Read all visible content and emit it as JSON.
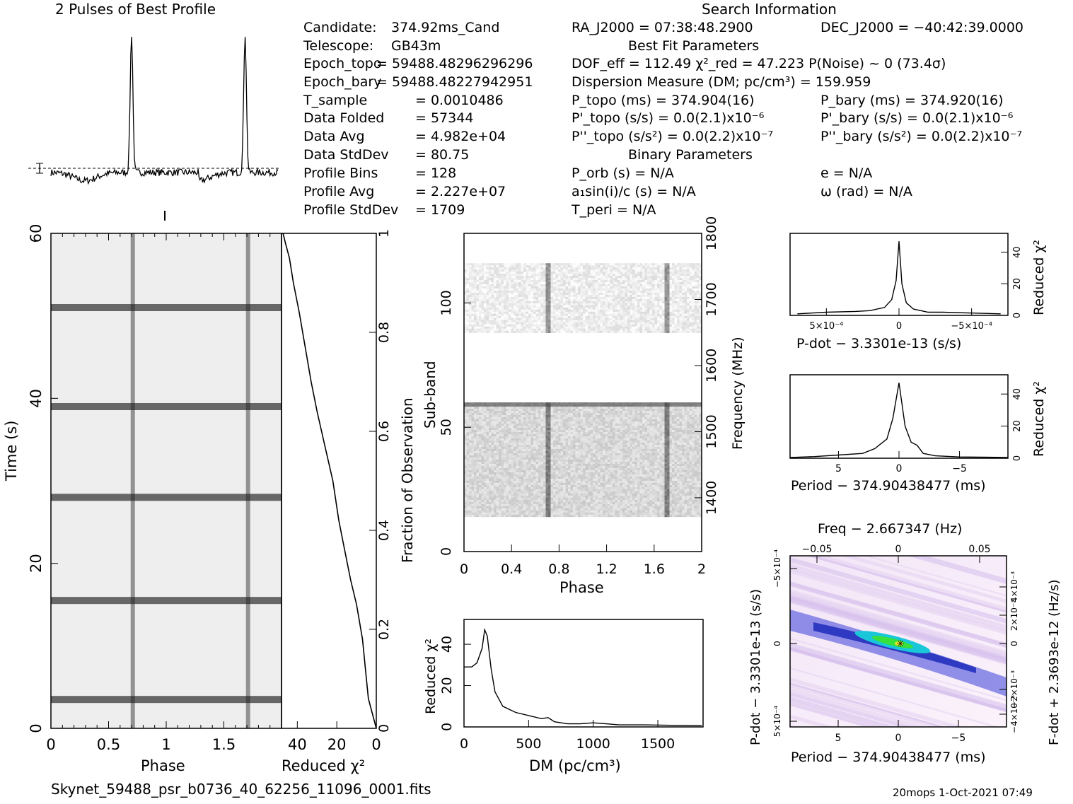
{
  "header": {
    "profile_title": "2 Pulses of Best Profile",
    "search_title": "Search Information",
    "best_fit_title": "Best Fit Parameters",
    "binary_title": "Binary Parameters"
  },
  "info_left": [
    {
      "k": "Candidate:",
      "v": "374.92ms_Cand"
    },
    {
      "k": "Telescope:",
      "v": "GB43m"
    },
    {
      "k": "Epoch_topo",
      "v": "= 59488.48296296296"
    },
    {
      "k": "Epoch_bary",
      "v": "= 59488.48227942951"
    },
    {
      "k": "T_sample",
      "v": "0.0010486"
    },
    {
      "k": "Data Folded",
      "v": "57344"
    },
    {
      "k": "Data Avg",
      "v": "4.982e+04"
    },
    {
      "k": "Data StdDev",
      "v": "80.75"
    },
    {
      "k": "Profile Bins",
      "v": "128"
    },
    {
      "k": "Profile Avg",
      "v": "2.227e+07"
    },
    {
      "k": "Profile StdDev",
      "v": "1709"
    }
  ],
  "info_mid": {
    "ra": "RA_J2000 = 07:38:48.2900",
    "dof": "DOF_eff = 112.49   χ²_red = 47.223   P(Noise) ~ 0    (73.4σ)",
    "dm": "Dispersion Measure (DM; pc/cm³) = 159.959",
    "ptopo": "P_topo (ms) =  374.904(16)",
    "pdtopo": "P'_topo (s/s) = 0.0(2.1)x10⁻⁶",
    "pddtopo": "P''_topo (s/s²) = 0.0(2.2)x10⁻⁷",
    "porb": "P_orb (s) = N/A",
    "a1": "a₁sin(i)/c (s) = N/A",
    "tperi": "T_peri = N/A"
  },
  "info_right": {
    "dec": "DEC_J2000 = −40:42:39.0000",
    "pbary": "P_bary (ms) =  374.920(16)",
    "pdbary": "P'_bary (s/s) = 0.0(2.1)x10⁻⁶",
    "pddbary": "P''_bary (s/s²) = 0.0(2.2)x10⁻⁷",
    "e": "e = N/A",
    "omega": "ω (rad) = N/A"
  },
  "axes": {
    "time_label": "Time (s)",
    "phase_label": "Phase",
    "redchi_label": "Reduced χ²",
    "fraction_label": "Fraction of Observation",
    "subband_label": "Sub-band",
    "freq_label": "Frequency (MHz)",
    "dm_label": "DM (pc/cm³)",
    "pdot_label": "P-dot − 3.3301e-13 (s/s)",
    "period_label": "Period − 374.90438477 (ms)",
    "freq_top_label": "Freq − 2.667347 (Hz)",
    "fdot_label": "F-dot + 2.3693e-12 (Hz/s)",
    "pdot_side_label": "P-dot − 3.3301e-13 (s/s)"
  },
  "footer": {
    "filename": "Skynet_59488_psr_b0736_40_62256_11096_0001.fits",
    "stamp": "20mops   1-Oct-2021 07:49"
  },
  "chart_data": [
    {
      "type": "line",
      "title": "2 Pulses of Best Profile",
      "x_range": [
        0,
        2
      ],
      "peaks_phase": [
        0.71,
        1.71
      ]
    },
    {
      "type": "heatmap",
      "name": "time-phase",
      "xlabel": "Phase",
      "ylabel": "Time (s)",
      "xlim": [
        0,
        2
      ],
      "ylim": [
        0,
        60
      ],
      "x_ticks": [
        "0",
        "0.5",
        "1",
        "1.5"
      ],
      "y_ticks": [
        "0",
        "20",
        "40",
        "60"
      ],
      "pulse_phase": [
        0.71,
        1.71
      ],
      "dark_rows_time": [
        3.5,
        15.5,
        28,
        39,
        51
      ]
    },
    {
      "type": "line",
      "name": "cumulative reduced chi2",
      "xlabel": "Reduced χ²",
      "ylabel": "Fraction of Observation",
      "x_ticks": [
        "40",
        "20",
        "0"
      ],
      "y_ticks": [
        "0",
        "0.2",
        "0.4",
        "0.6",
        "0.8",
        "1"
      ],
      "points": [
        [
          0,
          0
        ],
        [
          2,
          0.03
        ],
        [
          4,
          0.06
        ],
        [
          5,
          0.1
        ],
        [
          7,
          0.18
        ],
        [
          10,
          0.25
        ],
        [
          13,
          0.3
        ],
        [
          16,
          0.36
        ],
        [
          19,
          0.42
        ],
        [
          22,
          0.5
        ],
        [
          26,
          0.57
        ],
        [
          30,
          0.64
        ],
        [
          33,
          0.7
        ],
        [
          36,
          0.77
        ],
        [
          39,
          0.84
        ],
        [
          42,
          0.9
        ],
        [
          44,
          0.95
        ],
        [
          46,
          0.98
        ],
        [
          47.2,
          1
        ]
      ]
    },
    {
      "type": "heatmap",
      "name": "subband-phase",
      "xlabel": "Phase",
      "ylabel": "Sub-band",
      "y2label": "Frequency (MHz)",
      "xlim": [
        0,
        2
      ],
      "ylim": [
        0,
        128
      ],
      "x_ticks": [
        "0",
        "0.4",
        "0.8",
        "1.2",
        "1.6",
        "2"
      ],
      "y_ticks": [
        "0",
        "50",
        "100"
      ],
      "y2_ticks": [
        "1400",
        "1500",
        "1600",
        "1700",
        "1800"
      ],
      "filled_bands": [
        [
          14,
          60
        ],
        [
          88,
          116
        ]
      ],
      "pulse_phase": [
        0.71,
        1.71
      ]
    },
    {
      "type": "line",
      "name": "DM curve",
      "xlabel": "DM (pc/cm³)",
      "ylabel": "Reduced χ²",
      "x_ticks": [
        "0",
        "500",
        "1000",
        "1500"
      ],
      "y_ticks": [
        "0",
        "20",
        "40"
      ],
      "points": [
        [
          0,
          29
        ],
        [
          60,
          29
        ],
        [
          100,
          31
        ],
        [
          140,
          38
        ],
        [
          160,
          47
        ],
        [
          180,
          44
        ],
        [
          210,
          28
        ],
        [
          240,
          17
        ],
        [
          300,
          10
        ],
        [
          400,
          7
        ],
        [
          500,
          5.5
        ],
        [
          600,
          4
        ],
        [
          650,
          4.5
        ],
        [
          700,
          2.5
        ],
        [
          800,
          1.5
        ],
        [
          900,
          1.5
        ],
        [
          1000,
          2
        ],
        [
          1100,
          1.5
        ],
        [
          1200,
          1
        ],
        [
          1400,
          1
        ],
        [
          1600,
          0.8
        ],
        [
          1840,
          0.6
        ]
      ]
    },
    {
      "type": "line",
      "name": "P-dot curve",
      "xlabel": "P-dot − 3.3301e-13 (s/s)",
      "ylabel": "Reduced χ²",
      "x_ticks": [
        "5×10⁻⁴",
        "0",
        "−5×10⁻⁴"
      ],
      "y_ticks": [
        "0",
        "20",
        "40"
      ],
      "points": [
        [
          7,
          1
        ],
        [
          5,
          2
        ],
        [
          3,
          2.5
        ],
        [
          2,
          3
        ],
        [
          1,
          5
        ],
        [
          0.5,
          10
        ],
        [
          0.2,
          22
        ],
        [
          0,
          47
        ],
        [
          -0.2,
          20
        ],
        [
          -0.5,
          8
        ],
        [
          -1,
          4
        ],
        [
          -2,
          2
        ],
        [
          -3,
          2
        ],
        [
          -5,
          1.5
        ],
        [
          -7,
          1
        ]
      ]
    },
    {
      "type": "line",
      "name": "Period curve",
      "xlabel": "Period − 374.90438477 (ms)",
      "ylabel": "Reduced χ²",
      "x_ticks": [
        "5",
        "0",
        "−5"
      ],
      "y_ticks": [
        "0",
        "20",
        "40"
      ],
      "points": [
        [
          9,
          0.5
        ],
        [
          7,
          1
        ],
        [
          5,
          2
        ],
        [
          3,
          3
        ],
        [
          2,
          6
        ],
        [
          1,
          12
        ],
        [
          0.5,
          25
        ],
        [
          0,
          47
        ],
        [
          -0.5,
          20
        ],
        [
          -1,
          10
        ],
        [
          -1.5,
          8
        ],
        [
          -2,
          3
        ],
        [
          -3,
          1.5
        ],
        [
          -5,
          0.8
        ],
        [
          -9,
          0.5
        ]
      ]
    },
    {
      "type": "heatmap",
      "name": "P-Pdot plane",
      "xlabel": "Period − 374.90438477 (ms)",
      "ylabel": "P-dot − 3.3301e-13 (s/s)",
      "x_ticks": [
        "5",
        "0",
        "−5"
      ],
      "x2_ticks": [
        "−0.05",
        "0",
        "0.05"
      ],
      "y_ticks": [
        "−5×10⁻⁴",
        "0",
        "5×10⁻⁴"
      ],
      "y2_ticks": [
        "−4×10⁻³",
        "−2×10⁻³",
        "0",
        "2×10⁻³",
        "4×10⁻³"
      ]
    }
  ]
}
